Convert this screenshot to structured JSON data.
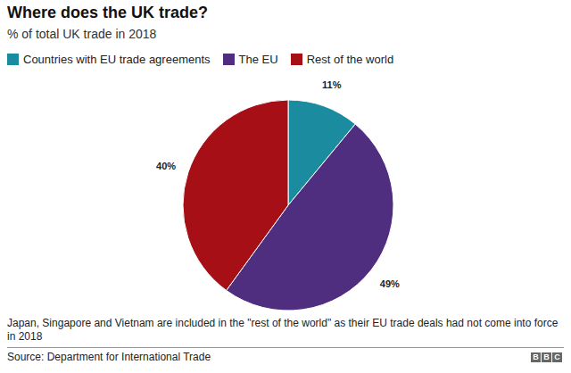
{
  "chart_data": {
    "type": "pie",
    "title": "Where does the UK trade?",
    "subtitle": "% of total UK trade in 2018",
    "categories": [
      "Countries with EU trade agreements",
      "The EU",
      "Rest of the world"
    ],
    "values": [
      11,
      49,
      40
    ],
    "value_labels": [
      "11%",
      "49%",
      "40%"
    ],
    "colors": [
      "#1b8ba0",
      "#4f2d7f",
      "#a50f15"
    ],
    "data_labels": true,
    "legend": "top",
    "note": "Japan, Singapore and Vietnam are included in the \"rest of the world\" as their EU trade deals had not come into force in 2018",
    "source": "Source: Department for International Trade",
    "logo": "BBC"
  }
}
